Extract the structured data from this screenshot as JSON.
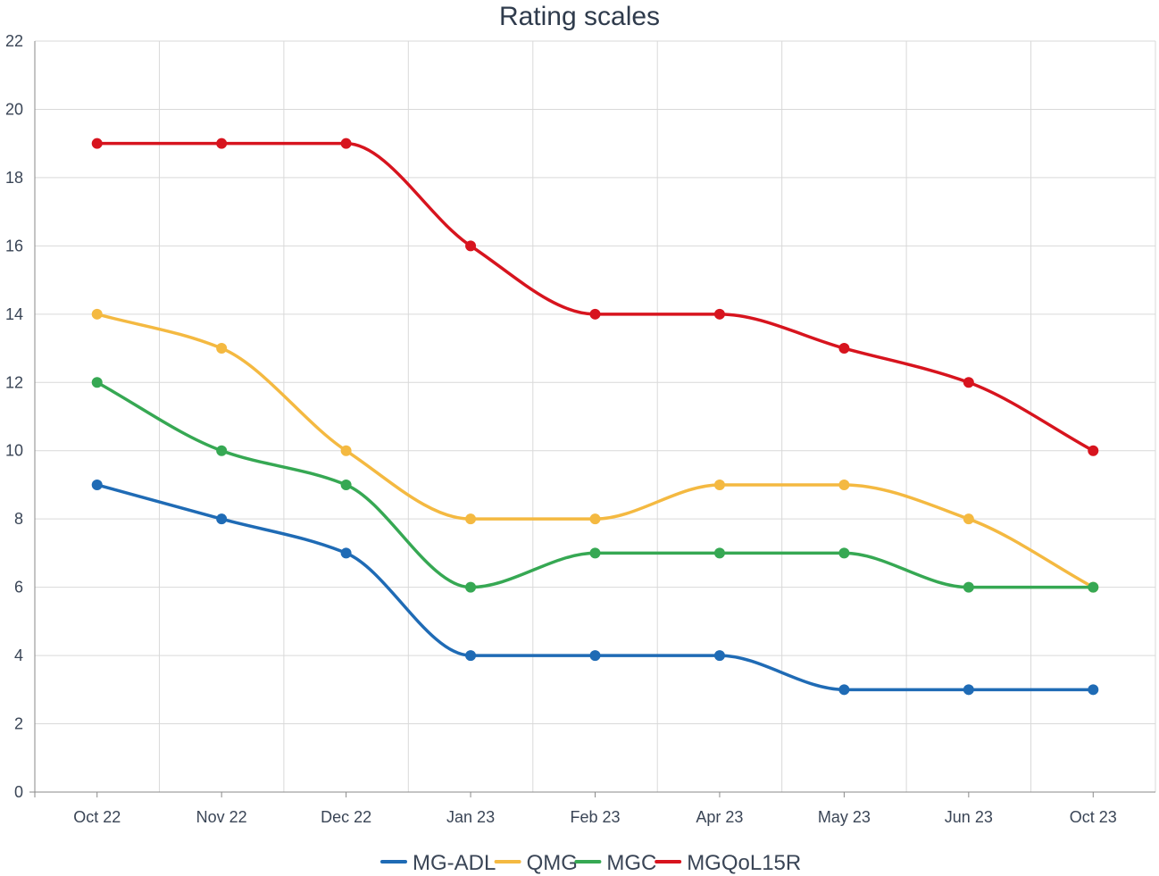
{
  "chart_data": {
    "type": "line",
    "title": "Rating scales",
    "xlabel": "",
    "ylabel": "",
    "categories": [
      "Oct 22",
      "Nov 22",
      "Dec 22",
      "Jan 23",
      "Feb 23",
      "Apr 23",
      "May 23",
      "Jun 23",
      "Oct 23"
    ],
    "ylim": [
      0,
      22
    ],
    "yticks": [
      0,
      2,
      4,
      6,
      8,
      10,
      12,
      14,
      16,
      18,
      20,
      22
    ],
    "grid": true,
    "legend_position": "bottom",
    "series": [
      {
        "name": "MG-ADL",
        "color": "#1f6bb5",
        "values": [
          9,
          8,
          7,
          4,
          4,
          4,
          3,
          3,
          3
        ]
      },
      {
        "name": "QMG",
        "color": "#f4b941",
        "values": [
          14,
          13,
          10,
          8,
          8,
          9,
          9,
          8,
          6
        ]
      },
      {
        "name": "MGC",
        "color": "#36a853",
        "values": [
          12,
          10,
          9,
          6,
          7,
          7,
          7,
          6,
          6
        ]
      },
      {
        "name": "MGQoL15R",
        "color": "#d7141e",
        "values": [
          19,
          19,
          19,
          16,
          14,
          14,
          13,
          12,
          10
        ]
      }
    ]
  }
}
